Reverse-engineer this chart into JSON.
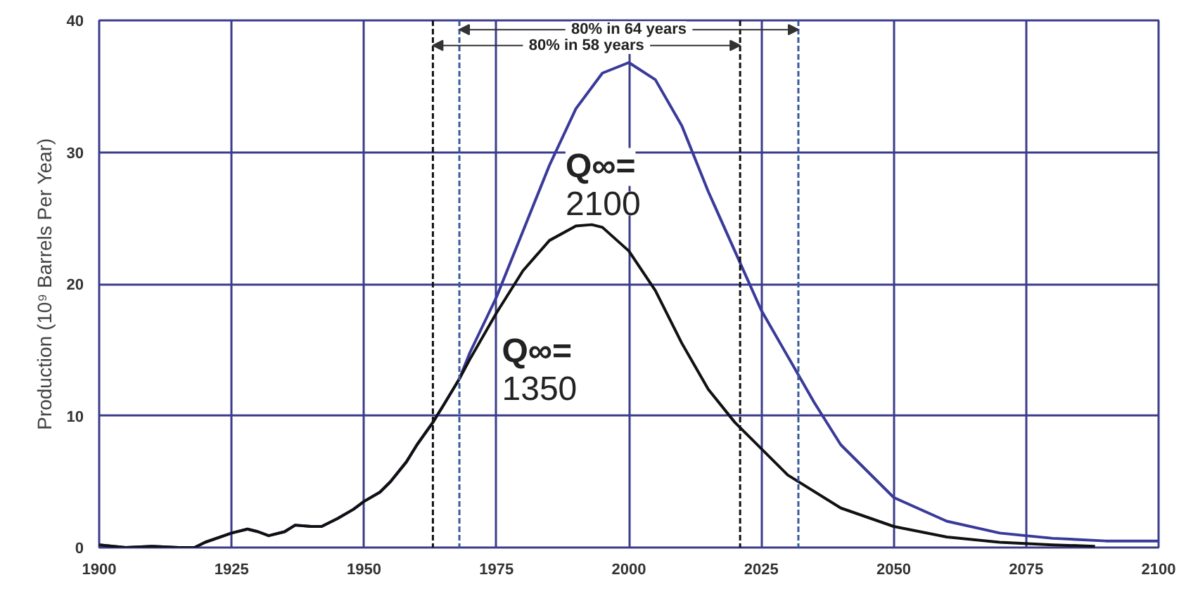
{
  "chart_data": {
    "type": "line",
    "ylabel": "Production (10⁹ Barrels Per Year)",
    "xlim": [
      1900,
      2100
    ],
    "ylim": [
      0,
      40
    ],
    "xticks": [
      1900,
      1925,
      1950,
      1975,
      2000,
      2025,
      2050,
      2075,
      2100
    ],
    "yticks": [
      0,
      10,
      20,
      30,
      40
    ],
    "grid": true,
    "line_style": "solid",
    "marker": "none",
    "series": [
      {
        "color": "#3a3a9a",
        "x": [
          1900,
          1905,
          1910,
          1915,
          1918,
          1920,
          1925,
          1928,
          1930,
          1932,
          1935,
          1937,
          1940,
          1942,
          1945,
          1948,
          1950,
          1953,
          1955,
          1958,
          1960,
          1963,
          1965,
          1968,
          1970,
          1975,
          1980,
          1985,
          1990,
          1995,
          2000,
          2005,
          2010,
          2015,
          2020,
          2025,
          2030,
          2035,
          2040,
          2050,
          2060,
          2070,
          2080,
          2090,
          2100
        ],
        "values": [
          0.2,
          0,
          0.1,
          0,
          0,
          0.4,
          1.1,
          1.4,
          1.2,
          0.9,
          1.2,
          1.7,
          1.6,
          1.6,
          2.2,
          2.9,
          3.5,
          4.2,
          5.0,
          6.5,
          7.8,
          9.5,
          10.8,
          12.8,
          14.8,
          19.0,
          24.0,
          29.0,
          33.3,
          36.0,
          36.8,
          35.5,
          32.0,
          27.0,
          22.5,
          18.0,
          14.5,
          11.0,
          7.8,
          3.8,
          2.0,
          1.1,
          0.7,
          0.5,
          0.5
        ]
      },
      {
        "color": "#111111",
        "x": [
          1900,
          1905,
          1910,
          1915,
          1918,
          1920,
          1925,
          1928,
          1930,
          1932,
          1935,
          1937,
          1940,
          1942,
          1945,
          1948,
          1950,
          1953,
          1955,
          1958,
          1960,
          1963,
          1965,
          1968,
          1970,
          1975,
          1980,
          1985,
          1990,
          1993,
          1995,
          2000,
          2005,
          2010,
          2015,
          2020,
          2025,
          2030,
          2040,
          2050,
          2060,
          2070,
          2080,
          2088
        ],
        "values": [
          0.2,
          0,
          0.1,
          0,
          0,
          0.4,
          1.1,
          1.4,
          1.2,
          0.9,
          1.2,
          1.7,
          1.6,
          1.6,
          2.2,
          2.9,
          3.5,
          4.2,
          5.0,
          6.5,
          7.8,
          9.5,
          10.8,
          12.8,
          14.3,
          17.8,
          21.0,
          23.3,
          24.4,
          24.5,
          24.3,
          22.5,
          19.5,
          15.5,
          12.0,
          9.5,
          7.5,
          5.5,
          3.0,
          1.6,
          0.8,
          0.4,
          0.2,
          0.1
        ]
      }
    ],
    "ref_lines": [
      {
        "axis": "x",
        "value": 1963,
        "label": "80% in 58 years",
        "color": "#111111",
        "line_style": "dashed"
      },
      {
        "axis": "x",
        "value": 2021,
        "label": null,
        "color": "#111111",
        "line_style": "dashed"
      },
      {
        "axis": "x",
        "value": 1968,
        "label": "80% in 64 years",
        "color": "#3a5a9a",
        "line_style": "dashed"
      },
      {
        "axis": "x",
        "value": 2032,
        "label": null,
        "color": "#3a5a9a",
        "line_style": "dashed"
      }
    ],
    "annotations": [
      "Q∞=\n2100",
      "Q∞=\n1350"
    ]
  }
}
